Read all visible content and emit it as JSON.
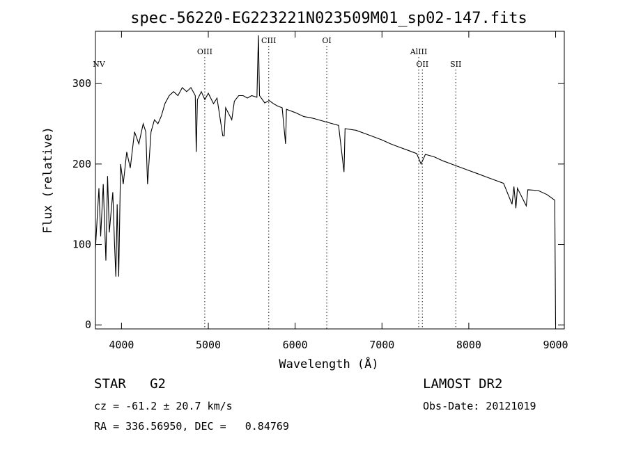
{
  "chart_data": {
    "type": "line",
    "title": "spec-56220-EG223221N023509M01_sp02-147.fits",
    "xlabel": "Wavelength (Å)",
    "ylabel": "Flux (relative)",
    "xlim": [
      3700,
      9100
    ],
    "ylim": [
      -5,
      365
    ],
    "xticks": [
      4000,
      5000,
      6000,
      7000,
      8000,
      9000
    ],
    "yticks": [
      0,
      100,
      200,
      300
    ],
    "grid": false,
    "series": [
      {
        "color": "#000000",
        "points": [
          [
            3700,
            95
          ],
          [
            3740,
            170
          ],
          [
            3760,
            110
          ],
          [
            3790,
            175
          ],
          [
            3820,
            80
          ],
          [
            3840,
            185
          ],
          [
            3860,
            115
          ],
          [
            3900,
            165
          ],
          [
            3920,
            100
          ],
          [
            3935,
            60
          ],
          [
            3950,
            150
          ],
          [
            3968,
            60
          ],
          [
            3990,
            200
          ],
          [
            4020,
            175
          ],
          [
            4060,
            215
          ],
          [
            4101,
            195
          ],
          [
            4150,
            240
          ],
          [
            4200,
            225
          ],
          [
            4250,
            250
          ],
          [
            4280,
            240
          ],
          [
            4300,
            175
          ],
          [
            4340,
            240
          ],
          [
            4380,
            255
          ],
          [
            4420,
            250
          ],
          [
            4460,
            260
          ],
          [
            4500,
            275
          ],
          [
            4550,
            285
          ],
          [
            4600,
            290
          ],
          [
            4650,
            285
          ],
          [
            4700,
            295
          ],
          [
            4750,
            290
          ],
          [
            4800,
            295
          ],
          [
            4850,
            285
          ],
          [
            4861,
            215
          ],
          [
            4875,
            280
          ],
          [
            4920,
            290
          ],
          [
            4960,
            280
          ],
          [
            5000,
            288
          ],
          [
            5060,
            275
          ],
          [
            5100,
            282
          ],
          [
            5167,
            235
          ],
          [
            5183,
            235
          ],
          [
            5200,
            270
          ],
          [
            5270,
            255
          ],
          [
            5300,
            278
          ],
          [
            5350,
            285
          ],
          [
            5400,
            285
          ],
          [
            5450,
            282
          ],
          [
            5500,
            285
          ],
          [
            5560,
            283
          ],
          [
            5577,
            360
          ],
          [
            5590,
            285
          ],
          [
            5650,
            276
          ],
          [
            5700,
            279
          ],
          [
            5750,
            275
          ],
          [
            5800,
            272
          ],
          [
            5850,
            270
          ],
          [
            5890,
            225
          ],
          [
            5900,
            268
          ],
          [
            5950,
            266
          ],
          [
            6000,
            264
          ],
          [
            6100,
            259
          ],
          [
            6200,
            257
          ],
          [
            6300,
            254
          ],
          [
            6400,
            251
          ],
          [
            6500,
            248
          ],
          [
            6563,
            190
          ],
          [
            6575,
            244
          ],
          [
            6700,
            242
          ],
          [
            6800,
            238
          ],
          [
            6900,
            234
          ],
          [
            7000,
            230
          ],
          [
            7100,
            225
          ],
          [
            7200,
            221
          ],
          [
            7300,
            217
          ],
          [
            7400,
            213
          ],
          [
            7450,
            200
          ],
          [
            7500,
            212
          ],
          [
            7600,
            209
          ],
          [
            7700,
            204
          ],
          [
            7800,
            200
          ],
          [
            7900,
            196
          ],
          [
            8000,
            192
          ],
          [
            8100,
            188
          ],
          [
            8200,
            184
          ],
          [
            8300,
            180
          ],
          [
            8400,
            176
          ],
          [
            8498,
            150
          ],
          [
            8520,
            172
          ],
          [
            8542,
            145
          ],
          [
            8560,
            170
          ],
          [
            8662,
            148
          ],
          [
            8680,
            168
          ],
          [
            8800,
            167
          ],
          [
            8900,
            162
          ],
          [
            8990,
            155
          ],
          [
            9000,
            0
          ]
        ]
      }
    ],
    "line_marks": [
      {
        "label": "NV",
        "x": 3740,
        "dotted": false
      },
      {
        "label": "OIII",
        "x": 4959,
        "dotted": true
      },
      {
        "label": "CIII",
        "x": 5696,
        "dotted": true
      },
      {
        "label": "OI",
        "x": 6364,
        "dotted": true
      },
      {
        "label": "AlIII",
        "x": 7423,
        "dotted": true
      },
      {
        "label": "OII",
        "x": 7465,
        "dotted": true
      },
      {
        "label": "SII",
        "x": 7850,
        "dotted": true
      }
    ]
  },
  "info": {
    "class_label": "STAR   G2",
    "cz_label": "cz = -61.2 ± 20.7 km/s",
    "coords_label": "RA = 336.56950, DEC =   0.84769",
    "survey_label": "LAMOST DR2",
    "obsdate_label": "Obs-Date: 20121019"
  }
}
